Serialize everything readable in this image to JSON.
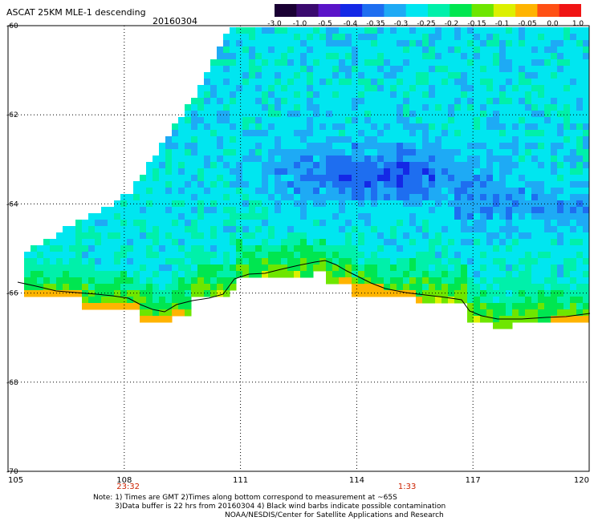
{
  "header": {
    "title": "ASCAT 25KM MLE-1 descending",
    "date": "20160304"
  },
  "colorbar": {
    "labels": [
      "-3.0",
      "-1.0",
      "-0.5",
      "-0.4",
      "-0.35",
      "-0.3",
      "-0.25",
      "-0.2",
      "-0.15",
      "-0.1",
      "-0.05",
      "0.0",
      "1.0"
    ],
    "colors": [
      "#1a0033",
      "#3a0a6e",
      "#5a14c8",
      "#1428e6",
      "#1e6ef0",
      "#1eaaf5",
      "#00e6f0",
      "#00f0aa",
      "#00e650",
      "#6ee600",
      "#dcf000",
      "#ffb400",
      "#ff5014",
      "#f01414"
    ]
  },
  "map": {
    "lat_labels": [
      "-60",
      "-62",
      "-64",
      "-66",
      "-68",
      "-70"
    ],
    "lon_labels": [
      "105",
      "108",
      "111",
      "114",
      "117",
      "120"
    ],
    "time_labels": [
      {
        "text": "23:32",
        "lon": 108.1
      },
      {
        "text": "1:33",
        "lon": 115.3
      }
    ],
    "time_color": "#cc2200"
  },
  "notes": {
    "line1": "Note: 1) Times are GMT 2)Times along bottom correspond to measurement at ~65S",
    "line2": "3)Data buffer is 22 hrs from 20160304 4) Black wind barbs indicate possible contamination",
    "line3": "NOAA/NESDIS/Center for Satellite Applications and Research"
  }
}
